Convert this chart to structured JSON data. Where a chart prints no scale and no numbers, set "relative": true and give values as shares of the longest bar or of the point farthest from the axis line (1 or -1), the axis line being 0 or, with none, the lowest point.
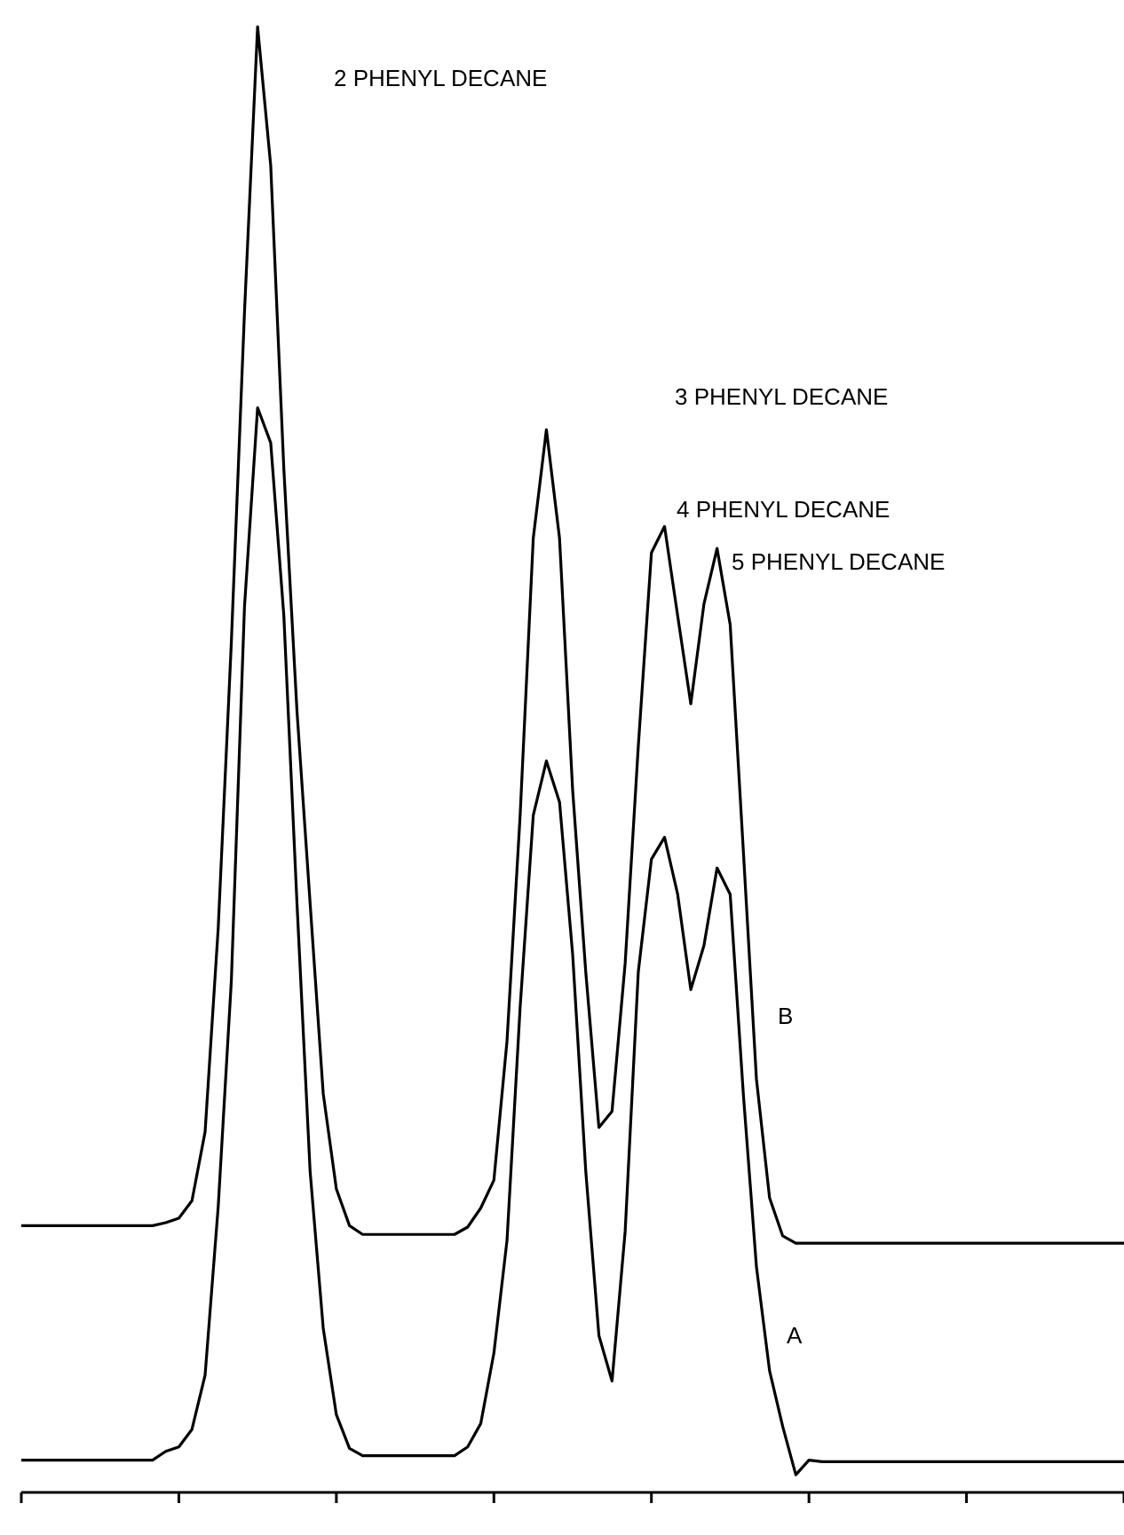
{
  "chart_data": {
    "type": "line",
    "relative": true,
    "grid": false,
    "marker": "none",
    "line_style": "solid",
    "categories": [
      null,
      null,
      null,
      null,
      null,
      null,
      null,
      null,
      null,
      null,
      null,
      null,
      null,
      null,
      null,
      null,
      null,
      null,
      null,
      null,
      null,
      null,
      null,
      null,
      null,
      null,
      null,
      null,
      null,
      null,
      null,
      null,
      null,
      null,
      null,
      null,
      null,
      null,
      null,
      null,
      null,
      null,
      null,
      null,
      null,
      null,
      null,
      null,
      null,
      null,
      null,
      null,
      null,
      null,
      null,
      null,
      null,
      null,
      null,
      null,
      null,
      null,
      null,
      null,
      null,
      null,
      null,
      null,
      null,
      null,
      null,
      null,
      null,
      null,
      null,
      null,
      null,
      null,
      null,
      null,
      null,
      null,
      null,
      null,
      null
    ],
    "series": [
      {
        "name": "B",
        "color": "#000000",
        "values": [
          0.182,
          0.182,
          0.182,
          0.182,
          0.182,
          0.182,
          0.182,
          0.182,
          0.182,
          0.182,
          0.182,
          0.184,
          0.187,
          0.199,
          0.246,
          0.385,
          0.58,
          0.805,
          1,
          0.905,
          0.698,
          0.533,
          0.402,
          0.272,
          0.207,
          0.182,
          0.176,
          0.176,
          0.176,
          0.176,
          0.176,
          0.176,
          0.176,
          0.176,
          0.181,
          0.194,
          0.213,
          0.308,
          0.462,
          0.651,
          0.725,
          0.651,
          0.479,
          0.355,
          0.249,
          0.26,
          0.361,
          0.509,
          0.641,
          0.659,
          0.598,
          0.538,
          0.606,
          0.644,
          0.592,
          0.438,
          0.282,
          0.201,
          0.175,
          0.17,
          0.17,
          0.17,
          0.17,
          0.17,
          0.17,
          0.17,
          0.17,
          0.17,
          0.17,
          0.17,
          0.17,
          0.17,
          0.17,
          0.17,
          0.17,
          0.17,
          0.17,
          0.17,
          0.17,
          0.17,
          0.17,
          0.17,
          0.17,
          0.17,
          0.17
        ]
      },
      {
        "name": "A",
        "color": "#000000",
        "values": [
          0.022,
          0.022,
          0.022,
          0.022,
          0.022,
          0.022,
          0.022,
          0.022,
          0.022,
          0.022,
          0.022,
          0.028,
          0.031,
          0.043,
          0.08,
          0.195,
          0.349,
          0.604,
          0.74,
          0.716,
          0.598,
          0.402,
          0.219,
          0.112,
          0.053,
          0.03,
          0.025,
          0.025,
          0.025,
          0.025,
          0.025,
          0.025,
          0.025,
          0.025,
          0.031,
          0.047,
          0.095,
          0.172,
          0.331,
          0.462,
          0.499,
          0.471,
          0.367,
          0.219,
          0.107,
          0.076,
          0.178,
          0.355,
          0.432,
          0.447,
          0.408,
          0.343,
          0.373,
          0.426,
          0.408,
          0.272,
          0.154,
          0.083,
          0.045,
          0.012,
          0.022,
          0.021,
          0.021,
          0.021,
          0.021,
          0.021,
          0.021,
          0.021,
          0.021,
          0.021,
          0.021,
          0.021,
          0.021,
          0.021,
          0.021,
          0.021,
          0.021,
          0.021,
          0.021,
          0.021,
          0.021,
          0.021,
          0.021,
          0.021,
          0.021
        ]
      }
    ],
    "annotations": [
      "2 PHENYL DECANE",
      "3 PHENYL DECANE",
      "4 PHENYL DECANE",
      "5 PHENYL DECANE"
    ]
  }
}
